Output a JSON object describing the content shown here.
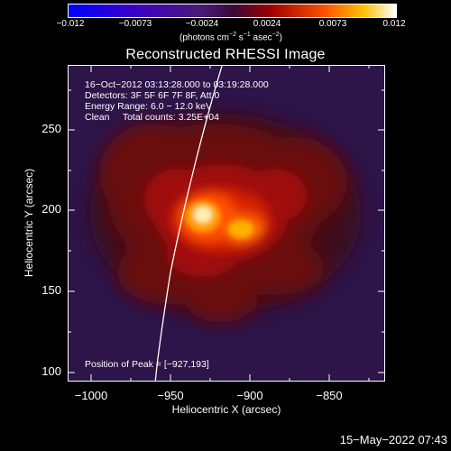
{
  "colorbar": {
    "ticks": [
      "−0.012",
      "−0.0073",
      "−0.0024",
      "0.0024",
      "0.0073",
      "0.012"
    ],
    "unit_main": "(photons cm",
    "unit_exp1": "−2",
    "unit_s": " s",
    "unit_exp2": "−1",
    "unit_asec": " asec",
    "unit_exp3": "−2",
    "unit_close": ")"
  },
  "title": "Reconstructed RHESSI Image",
  "annotations": {
    "time_range": "16−Oct−2012 03:13:28.000 to 03:19:28.000",
    "detectors": "Detectors: 3F 5F 6F 7F 8F, Att 0",
    "energy": "Energy Range: 6.0 − 12.0 keV",
    "clean": "Clean     Total counts: 3.25E+04",
    "peak": "Position of Peak = [−927,193]"
  },
  "axes": {
    "xlabel": "Heliocentric X (arcsec)",
    "ylabel": "Heliocentric Y (arcsec)",
    "xticks": [
      "−1000",
      "−950",
      "−900",
      "−850"
    ],
    "yticks": [
      "250",
      "200",
      "150",
      "100"
    ]
  },
  "timestamp": "15−May−2022 07:43"
}
